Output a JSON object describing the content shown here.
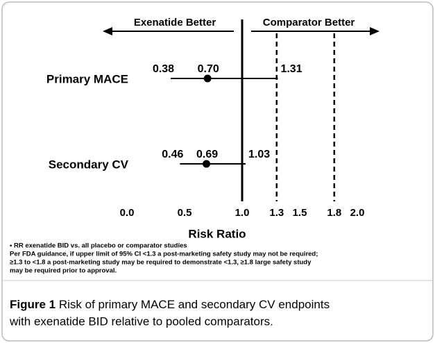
{
  "chart_data": {
    "type": "forest",
    "annotations": {
      "left": "Exenatide Better",
      "right": "Comparator Better"
    },
    "categories": [
      "Primary MACE",
      "Secondary CV"
    ],
    "lower": [
      0.38,
      0.46
    ],
    "estimate": [
      0.7,
      0.69
    ],
    "estimate_labels": [
      "0.70",
      "0.69"
    ],
    "upper": [
      1.31,
      1.03
    ],
    "xlabel": "Risk Ratio",
    "xlim": [
      0,
      2
    ],
    "xticks": [
      {
        "value": 0,
        "label": "0.0"
      },
      0.5,
      {
        "value": 1,
        "label": "1.0"
      },
      1.3,
      1.5,
      1.8,
      {
        "value": 2,
        "label": "2.0"
      }
    ],
    "reference_lines": [
      {
        "value": 1,
        "style": "solid"
      },
      {
        "value": 1.3,
        "style": "dashed"
      },
      {
        "value": 1.8,
        "style": "dashed"
      }
    ],
    "color": "#000000"
  },
  "notes": [
    "• RR exenatide BID vs. all placebo or comparator studies",
    "Per FDA guidance, if upper limit of 95% CI <1.3 a post-marketing safety study may not be required;",
    "≥1.3 to <1.8  a post-marketing study may be required to demonstrate <1.3, ≥1.8 large safety study",
    "may be required prior to approval."
  ],
  "caption": {
    "label": "Figure 1",
    "lines": [
      "Risk of primary MACE and secondary CV endpoints",
      "with exenatide BID relative to pooled comparators."
    ]
  }
}
